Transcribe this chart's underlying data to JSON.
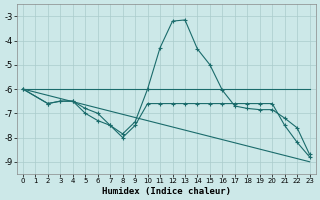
{
  "xlabel": "Humidex (Indice chaleur)",
  "background_color": "#cce8e8",
  "grid_color": "#aacccc",
  "line_color": "#1a6b6b",
  "xlim": [
    -0.5,
    23.5
  ],
  "ylim": [
    -9.5,
    -2.5
  ],
  "yticks": [
    -3,
    -4,
    -5,
    -6,
    -7,
    -8,
    -9
  ],
  "xticks": [
    0,
    1,
    2,
    3,
    4,
    5,
    6,
    7,
    8,
    9,
    10,
    11,
    12,
    13,
    14,
    15,
    16,
    17,
    18,
    19,
    20,
    21,
    22,
    23
  ],
  "series": [
    {
      "x": [
        0,
        2,
        10,
        23
      ],
      "y": [
        -6.0,
        -6.0,
        -6.0,
        -6.0
      ],
      "markers": false
    },
    {
      "x": [
        0,
        2,
        3,
        4,
        5,
        6,
        7,
        8,
        9,
        10,
        11,
        12,
        13,
        14,
        15,
        16,
        17,
        18,
        19,
        20,
        21,
        22,
        23
      ],
      "y": [
        -6.0,
        -6.6,
        -6.5,
        -6.5,
        -6.8,
        -7.0,
        -7.5,
        -7.85,
        -7.35,
        -6.0,
        -4.3,
        -3.2,
        -3.15,
        -4.35,
        -5.0,
        -6.05,
        -6.7,
        -6.8,
        -6.85,
        -6.85,
        -7.2,
        -7.6,
        -8.7
      ],
      "markers": true
    },
    {
      "x": [
        0,
        2,
        3,
        4,
        5,
        6,
        7,
        8,
        9,
        10,
        11,
        12,
        13,
        14,
        15,
        16,
        17,
        18,
        19,
        20,
        21,
        22,
        23
      ],
      "y": [
        -6.0,
        -6.6,
        -6.5,
        -6.5,
        -7.0,
        -7.3,
        -7.5,
        -8.0,
        -7.5,
        -6.6,
        -6.6,
        -6.6,
        -6.6,
        -6.6,
        -6.6,
        -6.6,
        -6.6,
        -6.6,
        -6.6,
        -6.6,
        -7.5,
        -8.2,
        -8.8
      ],
      "markers": true
    },
    {
      "x": [
        0,
        23
      ],
      "y": [
        -6.0,
        -9.0
      ],
      "markers": false
    }
  ]
}
